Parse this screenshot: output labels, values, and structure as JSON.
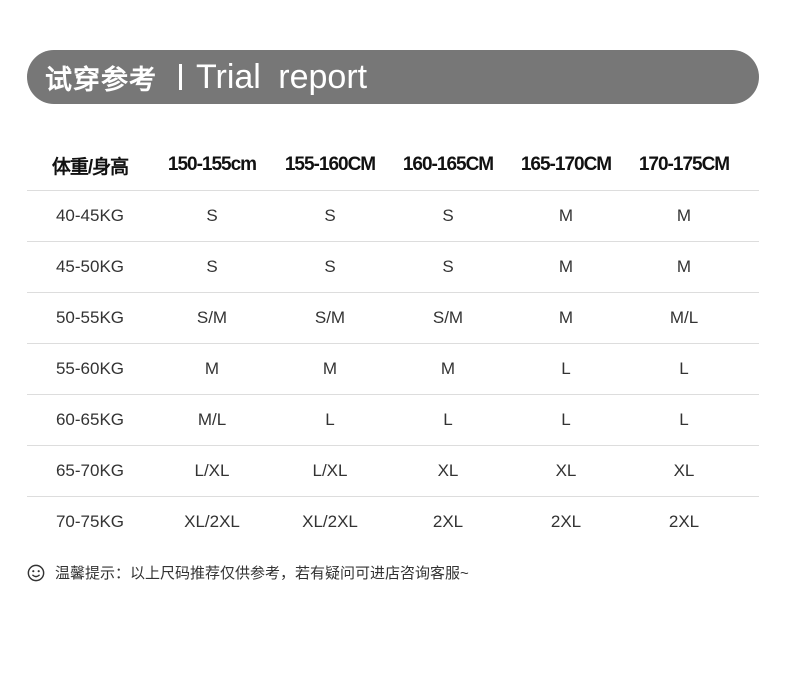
{
  "banner": {
    "title_cn": "试穿参考",
    "title_en": "Trial report"
  },
  "table": {
    "headers": [
      "体重/身高",
      "150-155cm",
      "155-160CM",
      "160-165CM",
      "165-170CM",
      "170-175CM"
    ],
    "rows": [
      [
        "40-45KG",
        "S",
        "S",
        "S",
        "M",
        "M"
      ],
      [
        "45-50KG",
        "S",
        "S",
        "S",
        "M",
        "M"
      ],
      [
        "50-55KG",
        "S/M",
        "S/M",
        "S/M",
        "M",
        "M/L"
      ],
      [
        "55-60KG",
        "M",
        "M",
        "M",
        "L",
        "L"
      ],
      [
        "60-65KG",
        "M/L",
        "L",
        "L",
        "L",
        "L"
      ],
      [
        "65-70KG",
        "L/XL",
        "L/XL",
        "XL",
        "XL",
        "XL"
      ],
      [
        "70-75KG",
        "XL/2XL",
        "XL/2XL",
        "2XL",
        "2XL",
        "2XL"
      ]
    ]
  },
  "footer": {
    "icon": "smiley-icon",
    "text": "温馨提示：以上尺码推荐仅供参考，若有疑问可进店咨询客服~"
  },
  "colors": {
    "banner": "#777777"
  }
}
